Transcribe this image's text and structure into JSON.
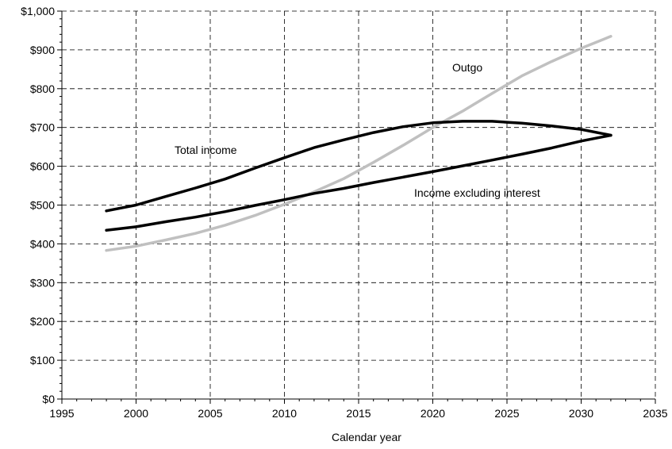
{
  "chart_data": {
    "type": "line",
    "title": "",
    "xlabel": "Calendar year",
    "ylabel": "",
    "xlim": [
      1995,
      2035
    ],
    "ylim": [
      0,
      1000
    ],
    "xticks": [
      1995,
      2000,
      2005,
      2010,
      2015,
      2020,
      2025,
      2030,
      2035
    ],
    "xtick_labels": [
      "1995",
      "2000",
      "2005",
      "2010",
      "2015",
      "2020",
      "2025",
      "2030",
      "2035"
    ],
    "yticks": [
      0,
      100,
      200,
      300,
      400,
      500,
      600,
      700,
      800,
      900,
      1000
    ],
    "ytick_labels": [
      "$0",
      "$100",
      "$200",
      "$300",
      "$400",
      "$500",
      "$600",
      "$700",
      "$800",
      "$900",
      "$1,000"
    ],
    "grid": true,
    "legend": "none",
    "series": [
      {
        "name": "Total income",
        "color": "#000000",
        "x": [
          1998,
          2000,
          2002,
          2004,
          2006,
          2008,
          2010,
          2012,
          2014,
          2016,
          2018,
          2020,
          2022,
          2024,
          2026,
          2028,
          2030,
          2032
        ],
        "y": [
          485,
          500,
          522,
          544,
          567,
          595,
          622,
          648,
          668,
          687,
          702,
          712,
          716,
          716,
          711,
          704,
          695,
          680
        ]
      },
      {
        "name": "Income excluding interest",
        "color": "#000000",
        "x": [
          1998,
          2000,
          2002,
          2004,
          2006,
          2008,
          2010,
          2012,
          2014,
          2016,
          2018,
          2020,
          2022,
          2024,
          2026,
          2028,
          2030,
          2032
        ],
        "y": [
          435,
          444,
          457,
          469,
          483,
          499,
          514,
          530,
          543,
          558,
          572,
          586,
          601,
          616,
          631,
          647,
          665,
          680
        ]
      },
      {
        "name": "Outgo",
        "color": "#c0c0c0",
        "x": [
          1998,
          2000,
          2002,
          2004,
          2006,
          2008,
          2010,
          2012,
          2014,
          2016,
          2018,
          2020,
          2022,
          2024,
          2026,
          2028,
          2030,
          2032
        ],
        "y": [
          383,
          394,
          410,
          427,
          448,
          473,
          502,
          534,
          568,
          610,
          654,
          700,
          742,
          788,
          833,
          870,
          904,
          935
        ]
      }
    ],
    "annotations": [
      {
        "text": "Total income",
        "series": "Total income"
      },
      {
        "text": "Income excluding interest",
        "series": "Income excluding interest"
      },
      {
        "text": "Outgo",
        "series": "Outgo"
      }
    ]
  }
}
